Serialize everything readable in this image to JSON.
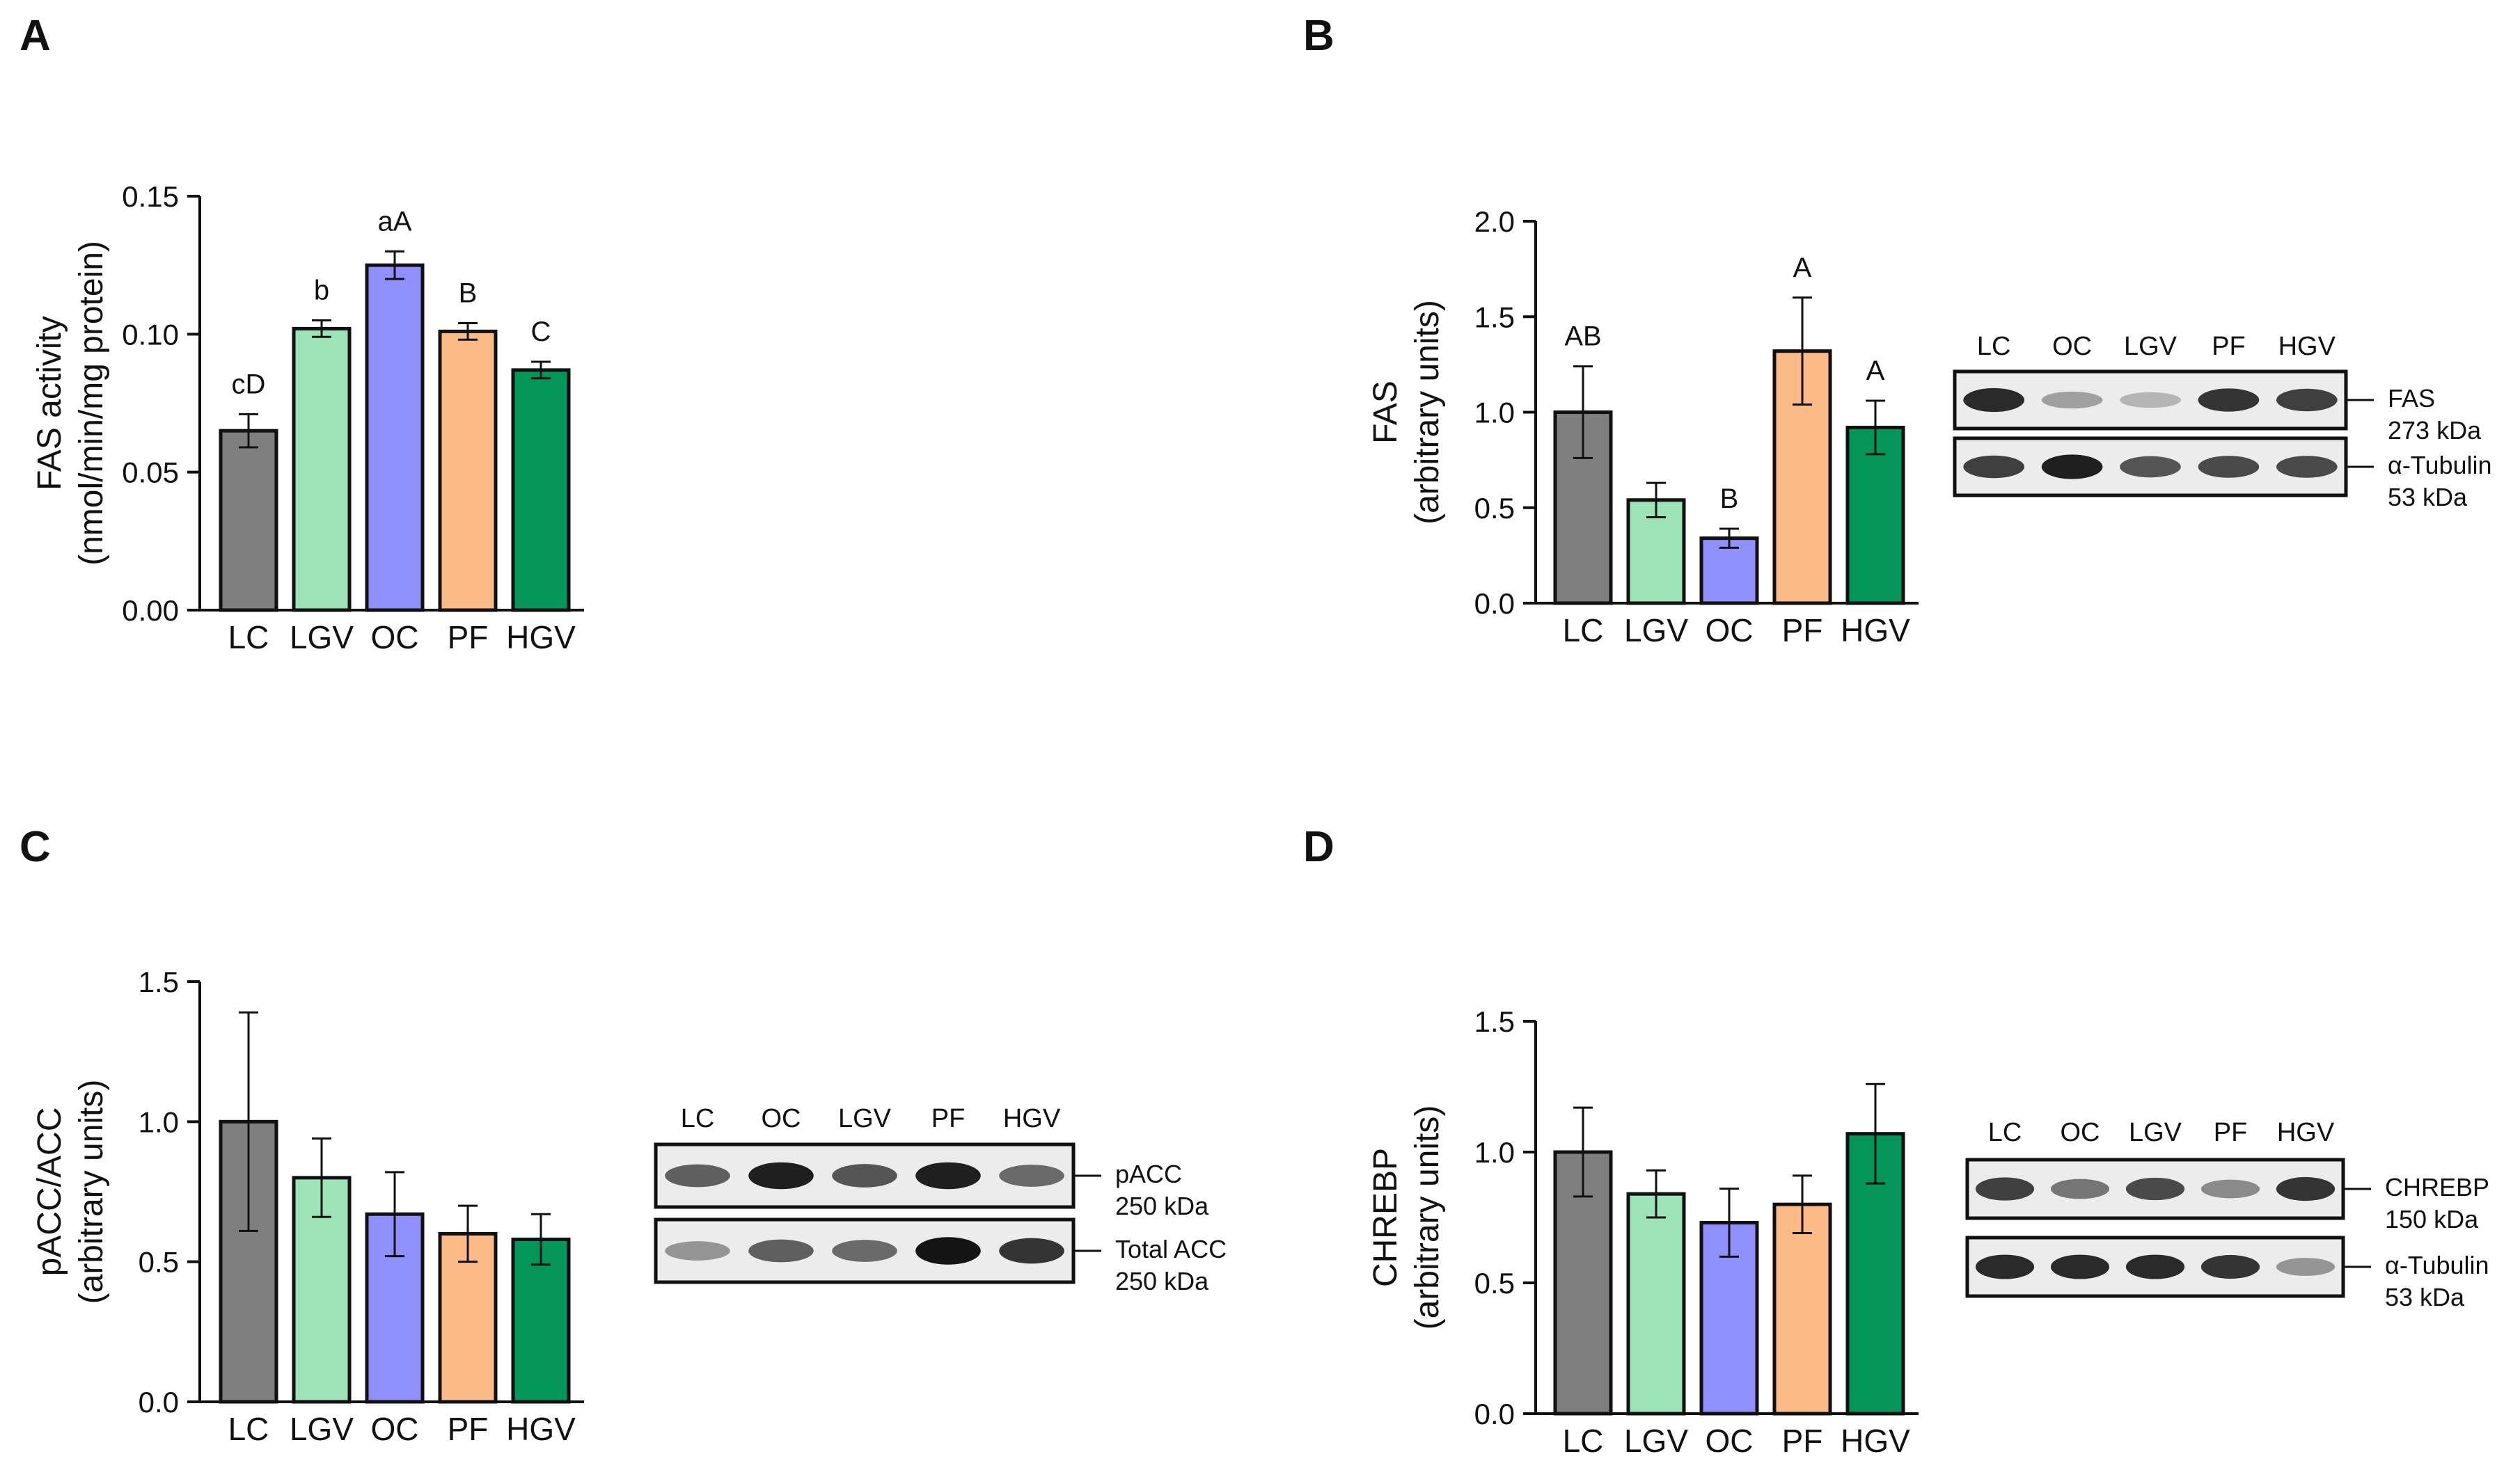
{
  "figure": {
    "colors": {
      "LC": "#7f7f7f",
      "LGV": "#9ce3b7",
      "OC": "#8f8ffd",
      "PF": "#fcba86",
      "HGV": "#049558"
    }
  },
  "chart_data": [
    {
      "panel": "A",
      "type": "bar",
      "title": "",
      "ylabel": "FAS activity",
      "ylabel2": "(nmol/min/mg protein)",
      "categories": [
        "LC",
        "LGV",
        "OC",
        "PF",
        "HGV"
      ],
      "values": [
        0.065,
        0.102,
        0.125,
        0.101,
        0.087
      ],
      "errors": [
        0.006,
        0.003,
        0.005,
        0.003,
        0.003
      ],
      "labels": [
        "cD",
        "b",
        "aA",
        "B",
        "C"
      ],
      "ylim": [
        0,
        0.15
      ],
      "yticks": [
        "0.00",
        "0.05",
        "0.10",
        "0.15"
      ]
    },
    {
      "panel": "B",
      "type": "bar",
      "title": "",
      "ylabel": "FAS",
      "ylabel2": "(arbitrary units)",
      "categories": [
        "LC",
        "LGV",
        "OC",
        "PF",
        "HGV"
      ],
      "values": [
        1.0,
        0.54,
        0.34,
        1.32,
        0.92
      ],
      "errors": [
        0.24,
        0.09,
        0.05,
        0.28,
        0.14
      ],
      "labels": [
        "AB",
        "",
        "B",
        "A",
        "A"
      ],
      "ylim": [
        0,
        2.0
      ],
      "yticks": [
        "0.0",
        "0.5",
        "1.0",
        "1.5",
        "2.0"
      ]
    },
    {
      "panel": "C",
      "type": "bar",
      "title": "",
      "ylabel": "pACC/ACC",
      "ylabel2": "(arbitrary units)",
      "categories": [
        "LC",
        "LGV",
        "OC",
        "PF",
        "HGV"
      ],
      "values": [
        1.0,
        0.8,
        0.67,
        0.6,
        0.58
      ],
      "errors": [
        0.39,
        0.14,
        0.15,
        0.1,
        0.09
      ],
      "labels": [
        "",
        "",
        "",
        "",
        ""
      ],
      "ylim": [
        0,
        1.5
      ],
      "yticks": [
        "0.0",
        "0.5",
        "1.0",
        "1.5"
      ]
    },
    {
      "panel": "D",
      "type": "bar",
      "title": "",
      "ylabel": "CHREBP",
      "ylabel2": "(arbitrary units)",
      "categories": [
        "LC",
        "LGV",
        "OC",
        "PF",
        "HGV"
      ],
      "values": [
        1.0,
        0.84,
        0.73,
        0.8,
        1.07
      ],
      "errors": [
        0.17,
        0.09,
        0.13,
        0.11,
        0.19
      ],
      "labels": [
        "",
        "",
        "",
        "",
        ""
      ],
      "ylim": [
        0,
        1.5
      ],
      "yticks": [
        "0.0",
        "0.5",
        "1.0",
        "1.5"
      ]
    }
  ],
  "blots": [
    {
      "panel": "B",
      "lanes": [
        "LC",
        "OC",
        "LGV",
        "PF",
        "HGV"
      ],
      "rows": [
        {
          "protein": "FAS",
          "kda": "273 kDa",
          "intensity": [
            0.9,
            0.35,
            0.25,
            0.85,
            0.8
          ]
        },
        {
          "protein": "α-Tubulin",
          "kda": "53 kDa",
          "intensity": [
            0.8,
            0.95,
            0.7,
            0.75,
            0.75
          ]
        }
      ]
    },
    {
      "panel": "C",
      "lanes": [
        "LC",
        "OC",
        "LGV",
        "PF",
        "HGV"
      ],
      "rows": [
        {
          "protein": "pACC",
          "kda": "250 kDa",
          "intensity": [
            0.65,
            0.95,
            0.7,
            0.95,
            0.6
          ]
        },
        {
          "protein": "Total ACC",
          "kda": "250 kDa",
          "intensity": [
            0.4,
            0.65,
            0.6,
            1.0,
            0.85
          ]
        }
      ]
    },
    {
      "panel": "D",
      "lanes": [
        "LC",
        "OC",
        "LGV",
        "PF",
        "HGV"
      ],
      "rows": [
        {
          "protein": "CHREBP",
          "kda": "150 kDa",
          "intensity": [
            0.8,
            0.55,
            0.75,
            0.45,
            0.85
          ]
        },
        {
          "protein": "α-Tubulin",
          "kda": "53 kDa",
          "intensity": [
            0.9,
            0.9,
            0.9,
            0.85,
            0.4
          ]
        }
      ]
    }
  ]
}
